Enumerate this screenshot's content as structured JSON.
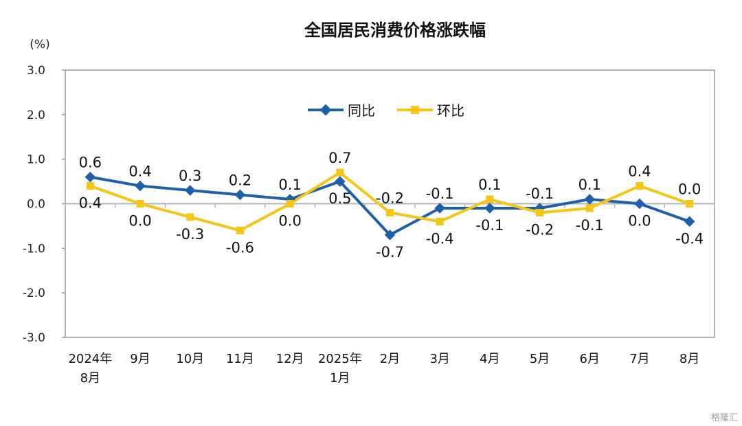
{
  "chart_data": {
    "type": "line",
    "title": "全国居民消费价格涨跌幅",
    "y_unit": "(%)",
    "ylim": [
      -3.0,
      3.0
    ],
    "yticks": [
      "3.0",
      "2.0",
      "1.0",
      "0.0",
      "-1.0",
      "-2.0",
      "-3.0"
    ],
    "ytick_values": [
      3,
      2,
      1,
      0,
      -1,
      -2,
      -3
    ],
    "categories": [
      [
        "2024年",
        "8月"
      ],
      [
        "9月"
      ],
      [
        "10月"
      ],
      [
        "11月"
      ],
      [
        "12月"
      ],
      [
        "2025年",
        "1月"
      ],
      [
        "2月"
      ],
      [
        "3月"
      ],
      [
        "4月"
      ],
      [
        "5月"
      ],
      [
        "6月"
      ],
      [
        "7月"
      ],
      [
        "8月"
      ]
    ],
    "series": [
      {
        "name": "同比",
        "color": "#1f5fa8",
        "marker": "diamond",
        "values": [
          0.6,
          0.4,
          0.3,
          0.2,
          0.1,
          0.5,
          -0.7,
          -0.1,
          -0.1,
          -0.1,
          0.1,
          0.0,
          -0.4
        ],
        "labels": [
          "0.6",
          "0.4",
          "0.3",
          "0.2",
          "0.1",
          "0.5",
          "-0.7",
          "-0.1",
          "-0.1",
          "-0.1",
          "0.1",
          "0.0",
          "-0.4"
        ]
      },
      {
        "name": "环比",
        "color": "#f5c518",
        "marker": "square",
        "values": [
          0.4,
          0.0,
          -0.3,
          -0.6,
          0.0,
          0.7,
          -0.2,
          -0.4,
          0.1,
          -0.2,
          -0.1,
          0.4,
          0.0
        ],
        "labels": [
          "0.4",
          "0.0",
          "-0.3",
          "-0.6",
          "0.0",
          "0.7",
          "-0.2",
          "-0.4",
          "0.1",
          "-0.2",
          "-0.1",
          "0.4",
          "0.0"
        ]
      }
    ],
    "legend_position": "top-center",
    "grid": false
  },
  "watermark": "格隆汇"
}
